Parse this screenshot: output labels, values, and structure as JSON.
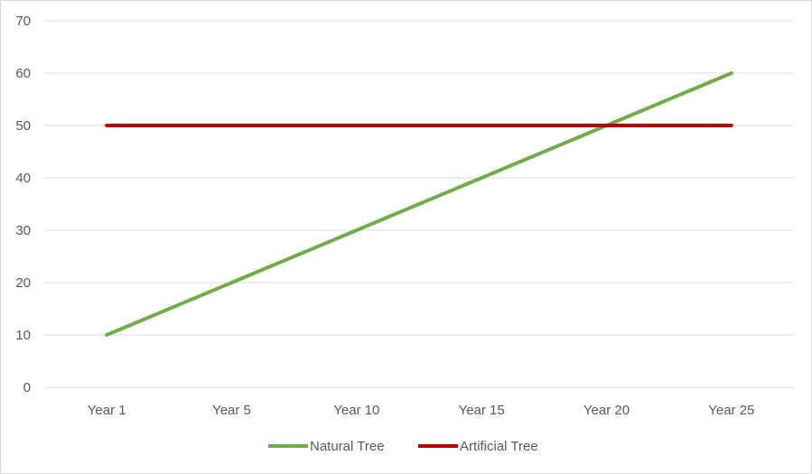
{
  "chart_data": {
    "type": "line",
    "categories": [
      "Year 1",
      "Year 5",
      "Year 10",
      "Year 15",
      "Year 20",
      "Year 25"
    ],
    "series": [
      {
        "name": "Natural Tree",
        "values": [
          10,
          20,
          30,
          40,
          50,
          60
        ],
        "color": "#70ad47"
      },
      {
        "name": "Artificial Tree",
        "values": [
          50,
          50,
          50,
          50,
          50,
          50
        ],
        "color": "#c00000"
      }
    ],
    "ylim": [
      0,
      70
    ],
    "yticks": [
      0,
      10,
      20,
      30,
      40,
      50,
      60,
      70
    ],
    "ytick_labels": [
      "0",
      "10",
      "20",
      "30",
      "40",
      "50",
      "60",
      "70"
    ],
    "grid": true,
    "gridline_color": "#d9d9d9",
    "legend_position": "bottom"
  }
}
